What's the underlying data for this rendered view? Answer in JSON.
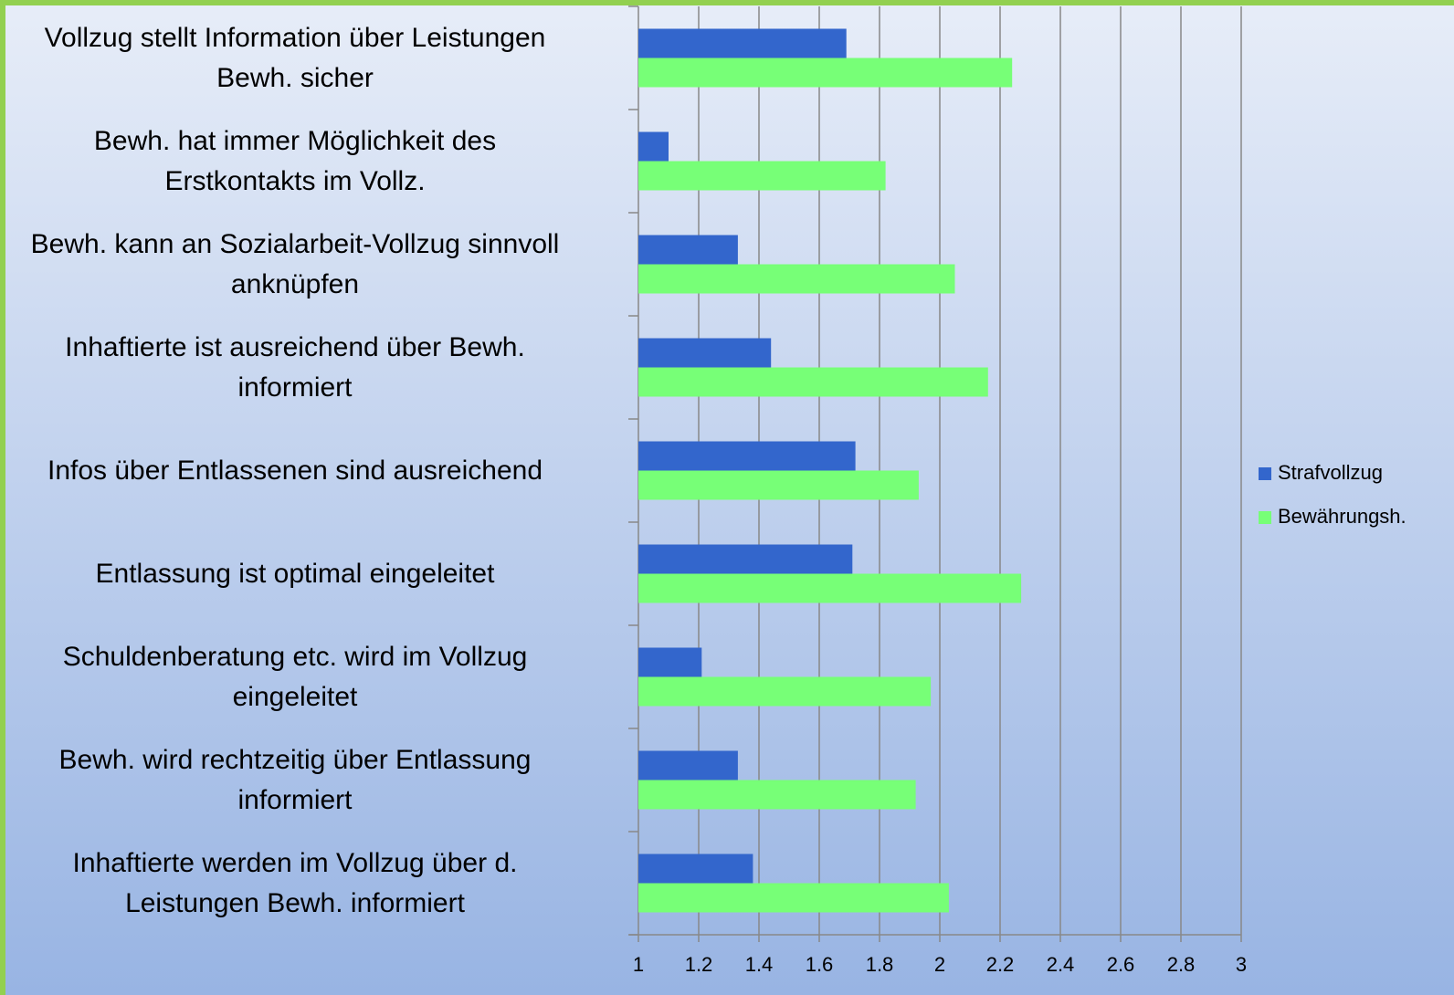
{
  "chart_data": {
    "type": "bar",
    "orientation": "horizontal",
    "categories": [
      "Vollzug stellt Information über Leistungen\nBewh. sicher",
      "Bewh. hat immer Möglichkeit des\nErstkontakts im Vollz.",
      "Bewh. kann an Sozialarbeit-Vollzug sinnvoll\nanknüpfen",
      "Inhaftierte ist ausreichend über Bewh.\ninformiert",
      "Infos über Entlassenen sind ausreichend",
      "Entlassung ist optimal eingeleitet",
      "Schuldenberatung etc. wird im Vollzug\neingeleitet",
      "Bewh. wird rechtzeitig über Entlassung\ninformiert",
      "Inhaftierte werden im Vollzug über d.\nLeistungen Bewh. informiert"
    ],
    "series": [
      {
        "name": "Strafvollzug",
        "color": "#3366cc",
        "values": [
          1.69,
          1.1,
          1.33,
          1.44,
          1.72,
          1.71,
          1.21,
          1.33,
          1.38
        ]
      },
      {
        "name": "Bewährungsh.",
        "color": "#77ff77",
        "values": [
          2.24,
          1.82,
          2.05,
          2.16,
          1.93,
          2.27,
          1.97,
          1.92,
          2.03
        ]
      }
    ],
    "xlim": [
      1,
      3
    ],
    "xticks": [
      1,
      1.2,
      1.4,
      1.6,
      1.8,
      2,
      2.2,
      2.4,
      2.6,
      2.8,
      3
    ],
    "grid": true,
    "legend": "right"
  }
}
